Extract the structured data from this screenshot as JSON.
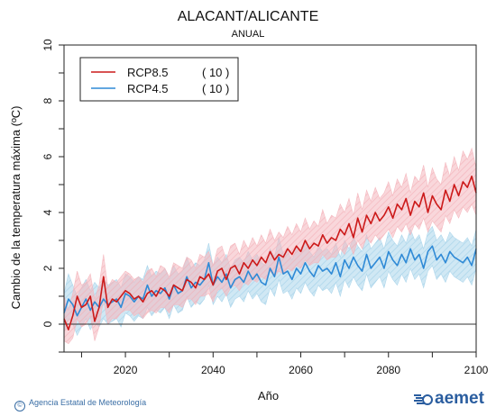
{
  "header": {
    "title": "ALACANT/ALICANTE",
    "subtitle": "ANUAL"
  },
  "footer": {
    "credit": "Agencia Estatal de Meteorología",
    "brand": "aemet"
  },
  "colors": {
    "rcp85": "#cc1a1a",
    "rcp85_band": "#f4b6bd",
    "rcp45": "#2f8ad6",
    "rcp45_band": "#a9d4ea"
  },
  "chart_data": {
    "type": "line",
    "title": "ALACANT/ALICANTE",
    "subtitle": "ANUAL",
    "xlabel": "Año",
    "ylabel": "Cambio de la temperatura máxima (ºC)",
    "xlim": [
      2006,
      2100
    ],
    "ylim": [
      -1,
      10
    ],
    "xticks": [
      2020,
      2040,
      2060,
      2080,
      2100
    ],
    "yticks": [
      0,
      2,
      4,
      6,
      8,
      10
    ],
    "zero_line": true,
    "legend_position": "top-left",
    "series": [
      {
        "name": "RCP8.5",
        "count": "( 10 )",
        "x_start": 2006,
        "values": [
          0.2,
          -0.2,
          0.3,
          1.0,
          0.6,
          0.7,
          1.0,
          0.1,
          0.6,
          1.7,
          0.6,
          0.9,
          0.8,
          1.0,
          1.2,
          1.1,
          0.9,
          1.0,
          0.8,
          1.1,
          1.2,
          1.0,
          1.3,
          1.2,
          1.0,
          1.4,
          1.3,
          1.2,
          1.6,
          1.5,
          1.3,
          1.7,
          1.6,
          1.8,
          1.4,
          1.9,
          2.0,
          1.6,
          2.0,
          2.1,
          1.8,
          2.2,
          2.0,
          2.3,
          2.1,
          2.4,
          2.2,
          2.6,
          2.3,
          2.5,
          2.4,
          2.7,
          2.5,
          2.8,
          2.6,
          3.0,
          2.7,
          2.9,
          2.8,
          3.2,
          2.9,
          3.1,
          3.0,
          3.4,
          3.2,
          3.6,
          3.1,
          3.8,
          3.3,
          3.9,
          3.6,
          4.0,
          3.7,
          3.9,
          4.2,
          3.8,
          4.3,
          4.1,
          4.5,
          3.9,
          4.4,
          4.2,
          4.7,
          4.0,
          4.6,
          4.3,
          4.1,
          4.8,
          4.4,
          5.0,
          4.6,
          5.1,
          4.9,
          5.3,
          4.7
        ],
        "band_low": [
          -0.6,
          -0.7,
          -0.5,
          0.2,
          -0.1,
          0.0,
          0.3,
          -0.6,
          -0.1,
          0.9,
          0.0,
          0.2,
          0.2,
          0.4,
          0.5,
          0.5,
          0.3,
          0.4,
          0.2,
          0.4,
          0.5,
          0.4,
          0.6,
          0.6,
          0.4,
          0.7,
          0.7,
          0.6,
          0.9,
          0.9,
          0.7,
          1.0,
          1.0,
          1.1,
          0.8,
          1.2,
          1.3,
          1.0,
          1.3,
          1.4,
          1.2,
          1.5,
          1.4,
          1.6,
          1.5,
          1.7,
          1.6,
          1.9,
          1.7,
          1.9,
          1.8,
          2.0,
          1.9,
          2.1,
          2.0,
          2.3,
          2.1,
          2.2,
          2.2,
          2.5,
          2.3,
          2.4,
          2.4,
          2.7,
          2.5,
          2.9,
          2.5,
          3.0,
          2.7,
          3.1,
          2.9,
          3.2,
          3.0,
          3.2,
          3.4,
          3.1,
          3.5,
          3.3,
          3.6,
          3.2,
          3.6,
          3.4,
          3.8,
          3.3,
          3.7,
          3.5,
          3.3,
          3.9,
          3.6,
          4.1,
          3.8,
          4.2,
          4.0,
          4.3,
          3.9
        ],
        "band_high": [
          1.0,
          0.5,
          1.1,
          1.9,
          1.4,
          1.5,
          1.8,
          0.9,
          1.4,
          2.5,
          1.3,
          1.6,
          1.5,
          1.7,
          1.9,
          1.8,
          1.6,
          1.7,
          1.5,
          1.9,
          2.0,
          1.7,
          2.1,
          2.0,
          1.7,
          2.2,
          2.1,
          2.0,
          2.4,
          2.3,
          2.0,
          2.5,
          2.4,
          2.6,
          2.1,
          2.7,
          2.8,
          2.3,
          2.8,
          2.9,
          2.5,
          3.0,
          2.7,
          3.1,
          2.8,
          3.2,
          2.9,
          3.4,
          3.0,
          3.3,
          3.1,
          3.5,
          3.2,
          3.6,
          3.3,
          3.8,
          3.4,
          3.7,
          3.5,
          4.1,
          3.6,
          3.9,
          3.8,
          4.3,
          4.0,
          4.5,
          3.9,
          4.7,
          4.1,
          4.8,
          4.4,
          4.9,
          4.5,
          4.7,
          5.1,
          4.6,
          5.2,
          4.9,
          5.4,
          4.7,
          5.3,
          5.1,
          5.7,
          4.9,
          5.6,
          5.2,
          5.0,
          5.8,
          5.3,
          6.0,
          5.5,
          6.2,
          5.9,
          6.3,
          5.6
        ]
      },
      {
        "name": "RCP4.5",
        "count": "( 10 )",
        "x_start": 2006,
        "values": [
          0.4,
          0.9,
          0.7,
          0.3,
          0.6,
          0.9,
          0.5,
          0.8,
          0.6,
          0.9,
          0.7,
          0.8,
          0.9,
          0.6,
          1.1,
          1.0,
          0.8,
          1.0,
          0.9,
          1.4,
          1.0,
          1.2,
          1.1,
          1.3,
          0.9,
          1.4,
          1.1,
          1.2,
          1.7,
          1.3,
          1.5,
          1.4,
          1.6,
          2.2,
          1.4,
          1.7,
          1.5,
          1.8,
          1.3,
          1.6,
          1.7,
          1.5,
          1.9,
          1.6,
          1.8,
          1.5,
          1.4,
          2.0,
          1.7,
          2.4,
          1.8,
          1.9,
          1.6,
          2.0,
          1.8,
          2.2,
          1.9,
          1.7,
          2.1,
          1.9,
          2.0,
          1.8,
          2.2,
          1.7,
          2.3,
          2.0,
          2.4,
          2.1,
          1.9,
          2.5,
          2.0,
          2.2,
          2.4,
          2.0,
          2.6,
          2.3,
          2.1,
          2.5,
          2.2,
          2.7,
          2.3,
          2.5,
          2.0,
          2.6,
          2.8,
          2.3,
          2.5,
          2.2,
          2.6,
          2.4,
          2.3,
          2.2,
          2.4,
          2.1,
          2.7
        ],
        "band_low": [
          -0.3,
          0.2,
          0.0,
          -0.4,
          -0.1,
          0.2,
          -0.2,
          0.1,
          -0.1,
          0.2,
          0.0,
          0.1,
          0.2,
          -0.1,
          0.4,
          0.3,
          0.1,
          0.3,
          0.2,
          0.6,
          0.3,
          0.5,
          0.4,
          0.6,
          0.2,
          0.7,
          0.4,
          0.5,
          1.0,
          0.6,
          0.8,
          0.7,
          0.9,
          1.4,
          0.7,
          1.0,
          0.8,
          1.1,
          0.6,
          0.9,
          1.0,
          0.8,
          1.2,
          0.9,
          1.1,
          0.8,
          0.7,
          1.3,
          1.0,
          1.6,
          1.1,
          1.2,
          0.9,
          1.3,
          1.1,
          1.5,
          1.2,
          1.0,
          1.4,
          1.2,
          1.3,
          1.1,
          1.5,
          1.0,
          1.6,
          1.3,
          1.7,
          1.4,
          1.2,
          1.8,
          1.3,
          1.5,
          1.7,
          1.3,
          1.9,
          1.6,
          1.4,
          1.8,
          1.5,
          2.0,
          1.6,
          1.8,
          1.3,
          1.9,
          2.1,
          1.6,
          1.8,
          1.5,
          1.9,
          1.7,
          1.6,
          1.5,
          1.7,
          1.4,
          2.0
        ],
        "band_high": [
          1.1,
          1.8,
          1.4,
          1.0,
          1.3,
          1.6,
          1.2,
          1.5,
          1.3,
          1.6,
          1.4,
          1.5,
          1.6,
          1.3,
          1.8,
          1.7,
          1.5,
          1.7,
          1.6,
          2.1,
          1.7,
          1.9,
          1.8,
          2.0,
          1.6,
          2.1,
          1.8,
          1.9,
          2.4,
          2.0,
          2.2,
          2.1,
          2.3,
          2.9,
          2.1,
          2.4,
          2.2,
          2.5,
          2.0,
          2.3,
          2.4,
          2.2,
          2.6,
          2.3,
          2.5,
          2.2,
          2.1,
          2.7,
          2.4,
          3.1,
          2.5,
          2.6,
          2.3,
          2.7,
          2.5,
          2.9,
          2.6,
          2.4,
          2.8,
          2.6,
          2.7,
          2.5,
          2.9,
          2.4,
          3.0,
          2.7,
          3.1,
          2.8,
          2.6,
          3.2,
          2.7,
          2.9,
          3.1,
          2.7,
          3.3,
          3.0,
          2.8,
          3.2,
          2.9,
          3.4,
          3.0,
          3.2,
          2.7,
          3.3,
          3.5,
          3.0,
          3.2,
          2.9,
          3.3,
          3.1,
          3.0,
          2.9,
          3.1,
          2.8,
          3.4
        ]
      }
    ]
  }
}
